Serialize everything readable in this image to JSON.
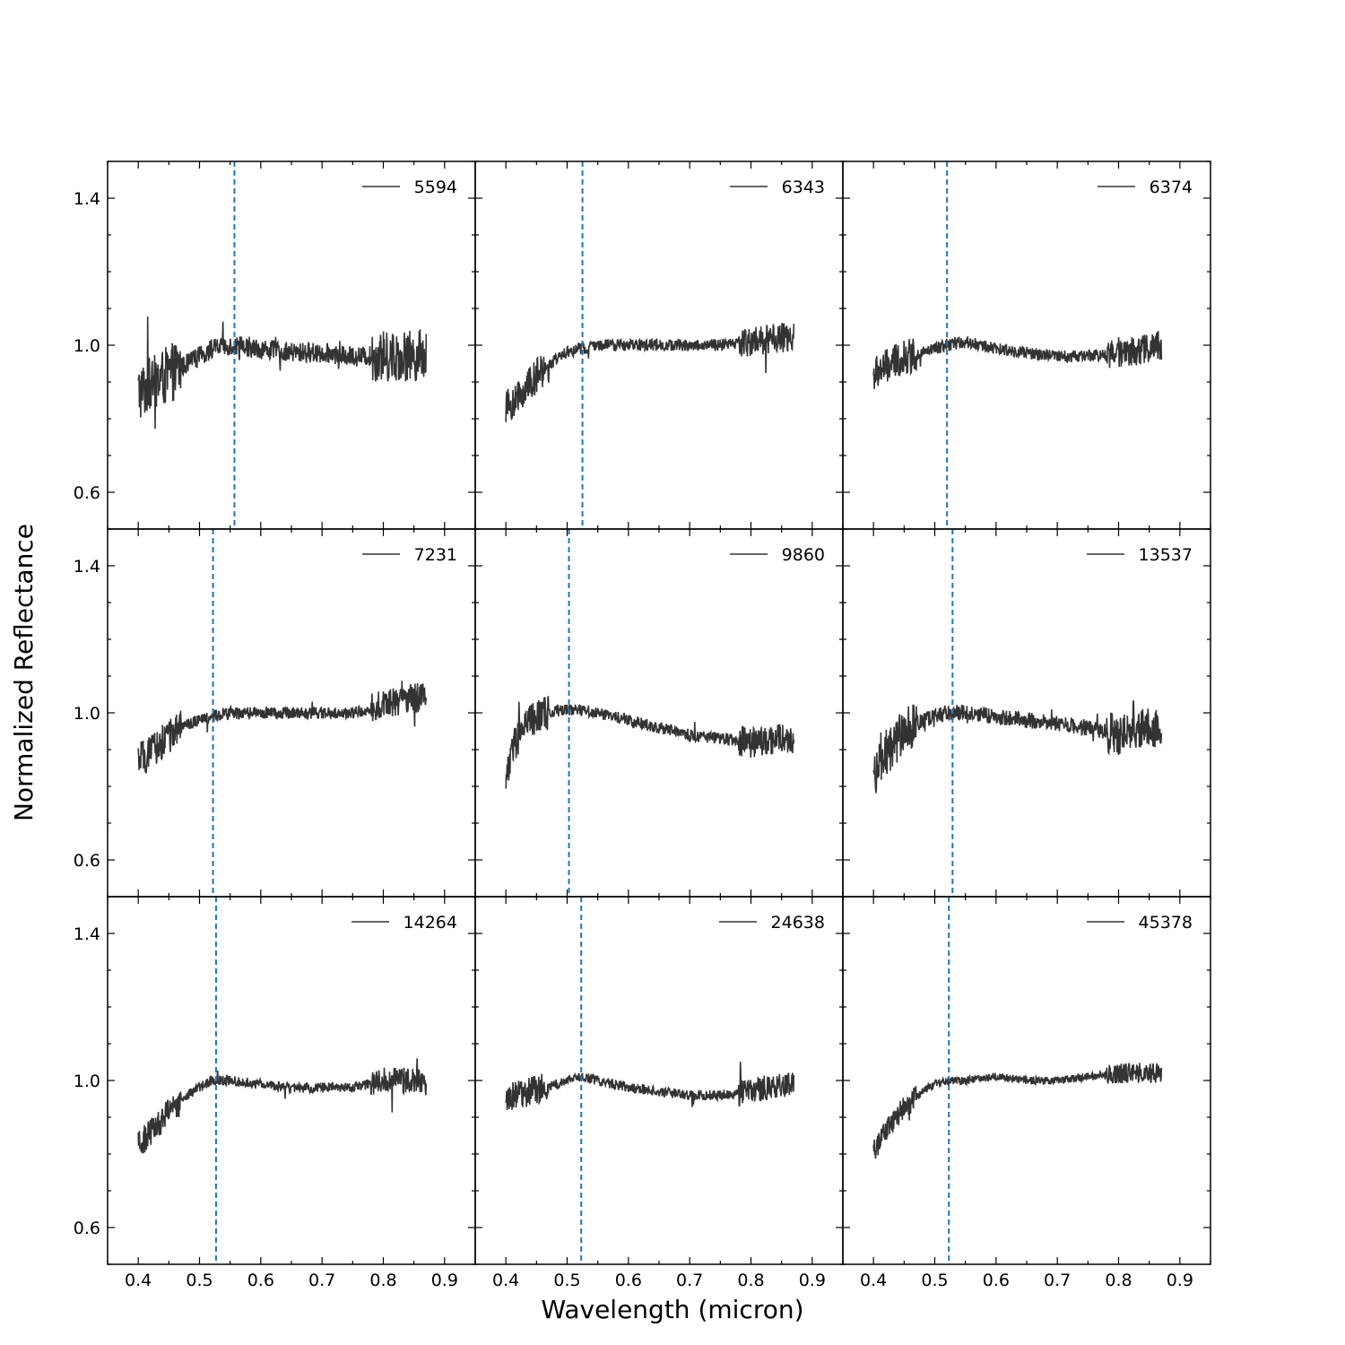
{
  "chart_data": {
    "type": "line",
    "xlabel": "Wavelength (micron)",
    "ylabel": "Normalized Reflectance",
    "xlim": [
      0.35,
      0.95
    ],
    "ylim": [
      0.5,
      1.5
    ],
    "xticks": [
      0.4,
      0.5,
      0.6,
      0.7,
      0.8,
      0.9
    ],
    "xtick_labels": [
      "0.4",
      "0.5",
      "0.6",
      "0.7",
      "0.8",
      "0.9"
    ],
    "yticks": [
      0.6,
      1.0,
      1.4
    ],
    "ytick_labels": [
      "0.6",
      "1.0",
      "1.4"
    ],
    "grid": false,
    "legend_position": "top-right",
    "line_color": "#333333",
    "marker_line_color": "#1f77b4",
    "layout": "3x3 shared axes",
    "panels": [
      {
        "name": "5594",
        "marker_x": 0.557,
        "noise": 0.05,
        "x": [
          0.4,
          0.42,
          0.44,
          0.46,
          0.48,
          0.5,
          0.52,
          0.55,
          0.6,
          0.65,
          0.7,
          0.75,
          0.8,
          0.85,
          0.87
        ],
        "y": [
          0.87,
          0.89,
          0.91,
          0.93,
          0.95,
          0.97,
          0.99,
          1.0,
          0.99,
          0.98,
          0.98,
          0.97,
          0.97,
          0.97,
          0.98
        ]
      },
      {
        "name": "6343",
        "marker_x": 0.525,
        "noise": 0.03,
        "x": [
          0.4,
          0.42,
          0.44,
          0.46,
          0.48,
          0.5,
          0.52,
          0.55,
          0.6,
          0.65,
          0.7,
          0.75,
          0.8,
          0.85,
          0.87
        ],
        "y": [
          0.83,
          0.86,
          0.9,
          0.93,
          0.96,
          0.98,
          0.99,
          1.0,
          1.0,
          1.0,
          1.0,
          1.0,
          1.01,
          1.02,
          1.02
        ]
      },
      {
        "name": "6374",
        "marker_x": 0.52,
        "noise": 0.03,
        "x": [
          0.4,
          0.42,
          0.44,
          0.46,
          0.48,
          0.5,
          0.52,
          0.55,
          0.6,
          0.65,
          0.7,
          0.75,
          0.8,
          0.85,
          0.87
        ],
        "y": [
          0.92,
          0.94,
          0.96,
          0.97,
          0.98,
          0.99,
          1.0,
          1.01,
          0.99,
          0.98,
          0.97,
          0.97,
          0.98,
          0.99,
          1.0
        ]
      },
      {
        "name": "7231",
        "marker_x": 0.522,
        "noise": 0.03,
        "x": [
          0.4,
          0.42,
          0.44,
          0.46,
          0.48,
          0.5,
          0.52,
          0.55,
          0.6,
          0.65,
          0.7,
          0.75,
          0.8,
          0.85,
          0.87
        ],
        "y": [
          0.87,
          0.89,
          0.92,
          0.95,
          0.97,
          0.98,
          0.99,
          1.0,
          1.0,
          1.0,
          1.0,
          1.0,
          1.02,
          1.04,
          1.04
        ]
      },
      {
        "name": "9860",
        "marker_x": 0.503,
        "noise": 0.03,
        "x": [
          0.4,
          0.41,
          0.43,
          0.45,
          0.47,
          0.5,
          0.52,
          0.55,
          0.6,
          0.65,
          0.7,
          0.75,
          0.8,
          0.85,
          0.87
        ],
        "y": [
          0.82,
          0.9,
          0.96,
          0.99,
          1.0,
          1.01,
          1.01,
          1.0,
          0.98,
          0.96,
          0.94,
          0.93,
          0.92,
          0.93,
          0.92
        ]
      },
      {
        "name": "13537",
        "marker_x": 0.529,
        "noise": 0.04,
        "x": [
          0.4,
          0.42,
          0.44,
          0.46,
          0.48,
          0.5,
          0.52,
          0.55,
          0.6,
          0.65,
          0.7,
          0.75,
          0.8,
          0.85,
          0.87
        ],
        "y": [
          0.83,
          0.89,
          0.93,
          0.96,
          0.98,
          0.99,
          1.0,
          1.0,
          0.99,
          0.98,
          0.97,
          0.96,
          0.94,
          0.96,
          0.96
        ]
      },
      {
        "name": "14264",
        "marker_x": 0.527,
        "noise": 0.025,
        "x": [
          0.4,
          0.42,
          0.44,
          0.46,
          0.48,
          0.5,
          0.52,
          0.55,
          0.6,
          0.65,
          0.7,
          0.75,
          0.8,
          0.85,
          0.87
        ],
        "y": [
          0.82,
          0.86,
          0.9,
          0.93,
          0.96,
          0.98,
          1.0,
          1.0,
          0.99,
          0.98,
          0.98,
          0.98,
          1.0,
          1.0,
          0.99
        ]
      },
      {
        "name": "24638",
        "marker_x": 0.523,
        "noise": 0.025,
        "x": [
          0.4,
          0.42,
          0.44,
          0.46,
          0.48,
          0.5,
          0.52,
          0.55,
          0.6,
          0.65,
          0.7,
          0.75,
          0.8,
          0.85,
          0.87
        ],
        "y": [
          0.95,
          0.96,
          0.97,
          0.98,
          0.99,
          1.0,
          1.01,
          1.0,
          0.98,
          0.97,
          0.96,
          0.96,
          0.97,
          0.99,
          0.99
        ]
      },
      {
        "name": "45378",
        "marker_x": 0.523,
        "noise": 0.02,
        "x": [
          0.4,
          0.42,
          0.44,
          0.46,
          0.48,
          0.5,
          0.52,
          0.55,
          0.6,
          0.65,
          0.7,
          0.75,
          0.8,
          0.85,
          0.87
        ],
        "y": [
          0.81,
          0.86,
          0.91,
          0.94,
          0.97,
          0.99,
          1.0,
          1.0,
          1.01,
          1.0,
          1.0,
          1.01,
          1.02,
          1.02,
          1.02
        ]
      }
    ]
  }
}
